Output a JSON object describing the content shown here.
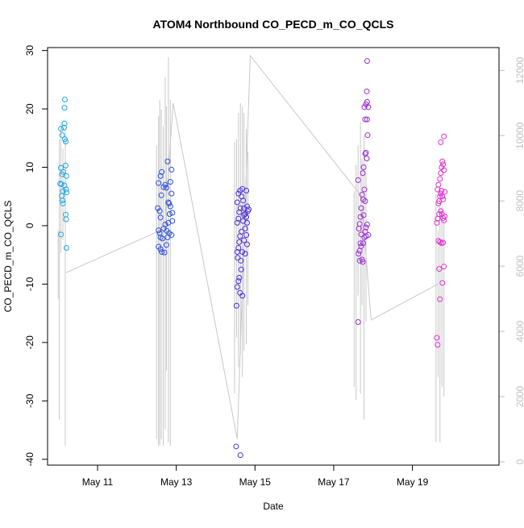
{
  "chart_data": {
    "type": "scatter",
    "title": "ATOM4 Northbound CO_PECD_m_CO_QCLS",
    "xlabel": "Date",
    "ylabel": "CO_PECD_m_CO_QCLS",
    "x_ticks": [
      "May 11",
      "May 13",
      "May 15",
      "May 17",
      "May 19"
    ],
    "x_tick_days": [
      11,
      13,
      15,
      17,
      19
    ],
    "xlim": [
      9.73,
      21.2
    ],
    "ylim": [
      -41,
      30.5
    ],
    "y_ticks": [
      30,
      20,
      10,
      0,
      -10,
      -20,
      -30,
      -40
    ],
    "right_axis": {
      "ylim": [
        -100,
        12700
      ],
      "ticks": [
        0,
        2000,
        4000,
        6000,
        8000,
        10000,
        12000
      ]
    },
    "legend": "none",
    "grid": false,
    "point_colors": [
      "#1ea6e6",
      "#2b4de0",
      "#4a30d8",
      "#9b2ad6",
      "#e030d0"
    ],
    "series": [
      {
        "color_index": 0,
        "points": [
          [
            10.07,
            16.6
          ],
          [
            10.1,
            15.5
          ],
          [
            10.05,
            7.2
          ],
          [
            10.07,
            9.9
          ],
          [
            10.1,
            8.8
          ],
          [
            10.13,
            9.2
          ],
          [
            10.09,
            5.1
          ],
          [
            10.11,
            4.3
          ],
          [
            10.12,
            3.8
          ],
          [
            10.07,
            -1.5
          ],
          [
            10.17,
            21.6
          ],
          [
            10.16,
            20.2
          ],
          [
            10.16,
            17.5
          ],
          [
            10.15,
            16.8
          ],
          [
            10.17,
            14.8
          ],
          [
            10.19,
            14.4
          ],
          [
            10.19,
            10.3
          ],
          [
            10.21,
            8.5
          ],
          [
            10.16,
            6.9
          ],
          [
            10.2,
            6.2
          ],
          [
            10.21,
            5.7
          ],
          [
            10.19,
            1.9
          ],
          [
            10.2,
            1.1
          ],
          [
            10.21,
            -3.8
          ],
          [
            10.08,
            7.1
          ],
          [
            10.12,
            5.9
          ]
        ]
      },
      {
        "color_index": 1,
        "points": [
          [
            12.55,
            7.3
          ],
          [
            12.6,
            8.5
          ],
          [
            12.63,
            9.2
          ],
          [
            12.68,
            6.6
          ],
          [
            12.72,
            7.0
          ],
          [
            12.75,
            6.5
          ],
          [
            12.53,
            3.0
          ],
          [
            12.58,
            2.5
          ],
          [
            12.6,
            1.4
          ],
          [
            12.55,
            -0.8
          ],
          [
            12.58,
            -1.3
          ],
          [
            12.6,
            -2.0
          ],
          [
            12.65,
            -2.2
          ],
          [
            12.55,
            -3.6
          ],
          [
            12.6,
            -4.0
          ],
          [
            12.63,
            -4.5
          ],
          [
            12.7,
            -4.6
          ],
          [
            12.75,
            -3.3
          ],
          [
            12.78,
            -2.0
          ],
          [
            12.8,
            0.5
          ],
          [
            12.83,
            2.0
          ],
          [
            12.85,
            3.3
          ],
          [
            12.78,
            11.0
          ],
          [
            12.88,
            9.6
          ],
          [
            12.85,
            7.5
          ],
          [
            12.88,
            5.5
          ],
          [
            12.8,
            4.0
          ],
          [
            12.82,
            -1.3
          ],
          [
            12.88,
            -1.6
          ],
          [
            12.9,
            0.8
          ],
          [
            12.68,
            -0.5
          ],
          [
            12.72,
            0.2
          ],
          [
            12.62,
            5.2
          ],
          [
            12.82,
            3.8
          ],
          [
            12.9,
            2.2
          ],
          [
            12.76,
            -0.9
          ]
        ]
      },
      {
        "color_index": 2,
        "points": [
          [
            14.52,
            -37.8
          ],
          [
            14.63,
            -39.3
          ],
          [
            14.53,
            -13.7
          ],
          [
            14.55,
            -10.5
          ],
          [
            14.58,
            -9.5
          ],
          [
            14.6,
            -8.9
          ],
          [
            14.62,
            -11.5
          ],
          [
            14.68,
            -12.0
          ],
          [
            14.65,
            -7.5
          ],
          [
            14.55,
            -4.5
          ],
          [
            14.58,
            -3.8
          ],
          [
            14.6,
            -2.8
          ],
          [
            14.62,
            -1.8
          ],
          [
            14.55,
            0.5
          ],
          [
            14.58,
            1.2
          ],
          [
            14.6,
            2.3
          ],
          [
            14.63,
            3.0
          ],
          [
            14.55,
            4.0
          ],
          [
            14.58,
            5.5
          ],
          [
            14.62,
            6.0
          ],
          [
            14.66,
            5.0
          ],
          [
            14.68,
            6.3
          ],
          [
            14.7,
            4.3
          ],
          [
            14.72,
            3.0
          ],
          [
            14.75,
            2.0
          ],
          [
            14.78,
            6.0
          ],
          [
            14.8,
            3.3
          ],
          [
            14.82,
            2.5
          ],
          [
            14.78,
            1.5
          ],
          [
            14.8,
            0.5
          ],
          [
            14.75,
            -0.5
          ],
          [
            14.78,
            -1.6
          ],
          [
            14.72,
            -2.5
          ],
          [
            14.8,
            -3.2
          ],
          [
            14.68,
            -4.5
          ],
          [
            14.66,
            -1.0
          ],
          [
            14.7,
            0.8
          ],
          [
            14.75,
            -4.8
          ],
          [
            14.64,
            -6.0
          ],
          [
            14.56,
            -5.5
          ],
          [
            14.72,
            1.8
          ],
          [
            14.84,
            2.8
          ]
        ]
      },
      {
        "color_index": 3,
        "points": [
          [
            17.62,
            -16.5
          ],
          [
            17.63,
            -4.8
          ],
          [
            17.66,
            -6.0
          ],
          [
            17.68,
            -3.0
          ],
          [
            17.7,
            -1.5
          ],
          [
            17.64,
            -0.5
          ],
          [
            17.66,
            0.3
          ],
          [
            17.62,
            7.8
          ],
          [
            17.68,
            1.5
          ],
          [
            17.7,
            3.0
          ],
          [
            17.72,
            5.3
          ],
          [
            17.75,
            4.5
          ],
          [
            17.78,
            6.2
          ],
          [
            17.8,
            4.2
          ],
          [
            17.72,
            -5.8
          ],
          [
            17.74,
            -6.2
          ],
          [
            17.75,
            -3.0
          ],
          [
            17.78,
            -2.0
          ],
          [
            17.8,
            -1.0
          ],
          [
            17.82,
            -1.8
          ],
          [
            17.85,
            0.2
          ],
          [
            17.76,
            10.0
          ],
          [
            17.8,
            12.3
          ],
          [
            17.82,
            12.5
          ],
          [
            17.84,
            11.5
          ],
          [
            17.86,
            15.5
          ],
          [
            17.8,
            18.2
          ],
          [
            17.85,
            18.2
          ],
          [
            17.78,
            20.3
          ],
          [
            17.82,
            20.8
          ],
          [
            17.85,
            21.2
          ],
          [
            17.88,
            20.3
          ],
          [
            17.84,
            23.0
          ],
          [
            17.85,
            28.2
          ],
          [
            17.88,
            -1.6
          ],
          [
            17.74,
            9.0
          ],
          [
            17.7,
            -3.5
          ],
          [
            17.66,
            -4.3
          ],
          [
            17.82,
            -0.3
          ],
          [
            17.76,
            1.8
          ]
        ]
      },
      {
        "color_index": 4,
        "points": [
          [
            19.62,
            -19.2
          ],
          [
            19.64,
            -20.4
          ],
          [
            19.7,
            -12.6
          ],
          [
            19.68,
            -7.4
          ],
          [
            19.66,
            -2.6
          ],
          [
            19.7,
            -2.8
          ],
          [
            19.74,
            -3.0
          ],
          [
            19.78,
            -2.9
          ],
          [
            19.8,
            -7.0
          ],
          [
            19.76,
            -9.8
          ],
          [
            19.62,
            0.5
          ],
          [
            19.64,
            1.2
          ],
          [
            19.68,
            2.0
          ],
          [
            19.72,
            2.5
          ],
          [
            19.75,
            2.0
          ],
          [
            19.78,
            1.3
          ],
          [
            19.8,
            0.9
          ],
          [
            19.66,
            3.8
          ],
          [
            19.7,
            5.0
          ],
          [
            19.72,
            5.5
          ],
          [
            19.74,
            6.0
          ],
          [
            19.76,
            5.0
          ],
          [
            19.78,
            4.5
          ],
          [
            19.82,
            5.8
          ],
          [
            19.66,
            7.0
          ],
          [
            19.7,
            8.0
          ],
          [
            19.72,
            9.0
          ],
          [
            19.74,
            10.0
          ],
          [
            19.76,
            11.0
          ],
          [
            19.78,
            10.5
          ],
          [
            19.8,
            9.5
          ],
          [
            19.72,
            14.3
          ],
          [
            19.8,
            15.3
          ],
          [
            19.64,
            6.2
          ],
          [
            19.68,
            4.2
          ],
          [
            19.82,
            1.6
          ]
        ]
      }
    ],
    "background_trace": {
      "axis": "right",
      "color": "#c8c8c8",
      "points": [
        [
          10.2,
          5800
        ],
        [
          12.7,
          7150
        ],
        [
          12.92,
          11000
        ],
        [
          14.55,
          700
        ],
        [
          14.88,
          12450
        ],
        [
          17.7,
          8150
        ],
        [
          17.95,
          4350
        ],
        [
          19.65,
          5450
        ]
      ],
      "spikes": [
        [
          10.0,
          5000,
          7100
        ],
        [
          10.03,
          1300,
          9900
        ],
        [
          10.07,
          6400,
          10400
        ],
        [
          10.12,
          6800,
          9600
        ],
        [
          10.18,
          500,
          10200
        ],
        [
          12.5,
          700,
          9700
        ],
        [
          12.55,
          500,
          10600
        ],
        [
          12.58,
          500,
          11100
        ],
        [
          12.62,
          700,
          10800
        ],
        [
          12.67,
          500,
          10300
        ],
        [
          12.72,
          1000,
          11800
        ],
        [
          12.75,
          2800,
          10900
        ],
        [
          12.8,
          600,
          12400
        ],
        [
          12.85,
          500,
          11100
        ],
        [
          14.48,
          2100,
          9800
        ],
        [
          14.53,
          3800,
          9900
        ],
        [
          14.58,
          2900,
          10700
        ],
        [
          14.63,
          3300,
          11000
        ],
        [
          14.68,
          2600,
          10900
        ],
        [
          14.72,
          3400,
          10700
        ],
        [
          14.78,
          3600,
          10200
        ],
        [
          14.82,
          4800,
          9500
        ],
        [
          17.52,
          2300,
          8300
        ],
        [
          17.57,
          1900,
          9100
        ],
        [
          17.62,
          5100,
          9700
        ],
        [
          17.68,
          2100,
          10400
        ],
        [
          17.72,
          4800,
          9300
        ],
        [
          17.77,
          1300,
          10000
        ],
        [
          17.82,
          4300,
          8800
        ],
        [
          19.6,
          600,
          8200
        ],
        [
          19.65,
          2600,
          7100
        ],
        [
          19.7,
          600,
          8400
        ],
        [
          19.75,
          2300,
          7800
        ],
        [
          19.8,
          2000,
          7400
        ]
      ]
    }
  }
}
